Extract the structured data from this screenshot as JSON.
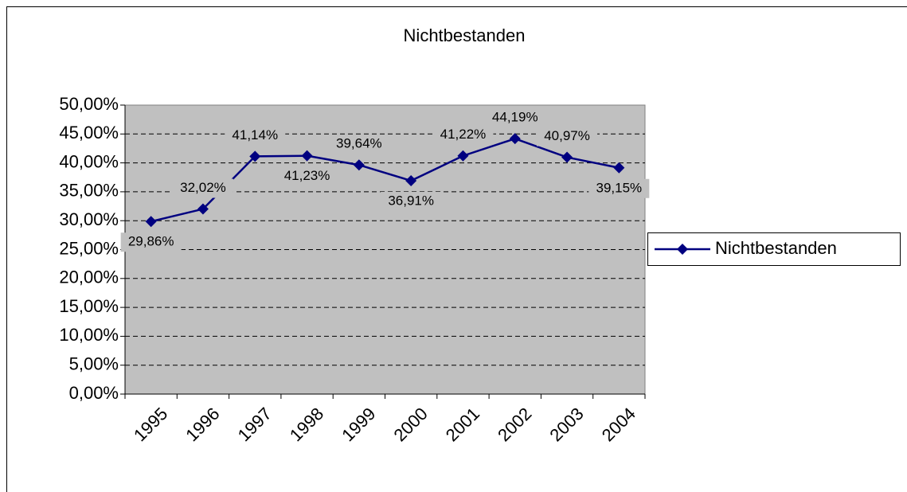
{
  "chart_data": {
    "type": "line",
    "title": "Nichtbestanden",
    "categories": [
      "1995",
      "1996",
      "1997",
      "1998",
      "1999",
      "2000",
      "2001",
      "2002",
      "2003",
      "2004"
    ],
    "series": [
      {
        "name": "Nichtbestanden",
        "color": "#000080",
        "values": [
          29.86,
          32.02,
          41.14,
          41.23,
          39.64,
          36.91,
          41.22,
          44.19,
          40.97,
          39.15
        ],
        "value_labels": [
          "29,86%",
          "32,02%",
          "41,14%",
          "41,23%",
          "39,64%",
          "36,91%",
          "41,22%",
          "44,19%",
          "40,97%",
          "39,15%"
        ]
      }
    ],
    "ylim": [
      0,
      50
    ],
    "yticks": [
      {
        "value": 0,
        "label": "0,00%"
      },
      {
        "value": 5,
        "label": "5,00%"
      },
      {
        "value": 10,
        "label": "10,00%"
      },
      {
        "value": 15,
        "label": "15,00%"
      },
      {
        "value": 20,
        "label": "20,00%"
      },
      {
        "value": 25,
        "label": "25,00%"
      },
      {
        "value": 30,
        "label": "30,00%"
      },
      {
        "value": 35,
        "label": "35,00%"
      },
      {
        "value": 40,
        "label": "40,00%"
      },
      {
        "value": 45,
        "label": "45,00%"
      },
      {
        "value": 50,
        "label": "50,00%"
      }
    ],
    "grid": true,
    "legend": "right"
  }
}
